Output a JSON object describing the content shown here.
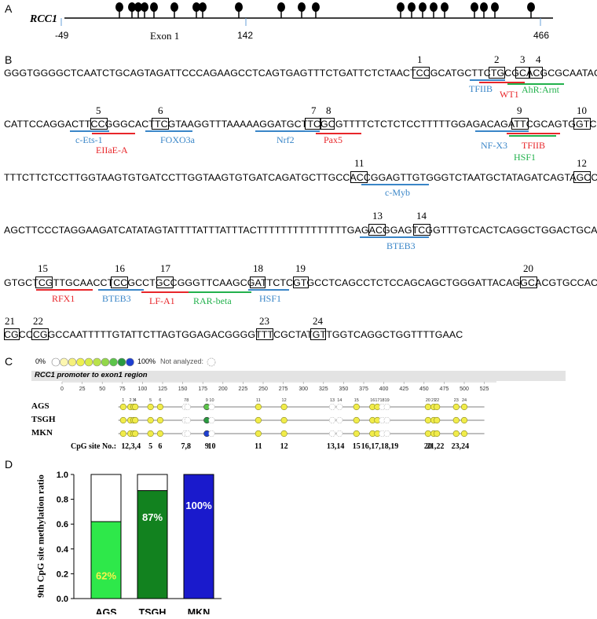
{
  "panelA": {
    "letter": "A",
    "gene": "RCC1",
    "ticks": [
      "-49",
      "142",
      "466"
    ],
    "exon_label": "Exon 1"
  },
  "panelB": {
    "letter": "B",
    "sequence_lines": [
      "GGGTGGGGCTCAATCTGCAGTAGATTCCCAGAAGCCTCAGTGAGTTTCTGATTCTCTAACTCCGCATGCTTCTGCGCACGCGCAATAGA",
      "CATTCCAGGACTTCCGGGCACTTCGTAAGGTTTAAAAAGGATGCTTCGCGTTTTCTCTCTCCTTTTTGGAGACAGATTCGCAGTGGTCG",
      "TTTCTTCTCCTTGGTAAGTGTGATCCTTGGTAAGTGTGATCAGATGCTTGCCACCGGAGTTGTGGGTCTAATGCTATAGATCAGTAGCCG",
      "AGCTTCCCTAGGAAGATCATATAGTATTTTATTTATTTACTTTTTTTTTTTTTTTGAGACGGAGTCGGTTTGTCACTCAGGCTGGACTGCA",
      "GTGCTCGTTGCAACCTCCGCCTGCCGGGTTCAAGCGATTCTCGTGCCTCAGCCTCTCCAGCAGCTGGGATTACAGGCACGTGCCACCA",
      "CGCCCGGCCAATTTTTGTATTCTTAGTGGAGACGGGGTTTCGCTATGTTGGTCAGGCTGGTTTTGAAC"
    ],
    "site_numbers": [
      "1",
      "2",
      "3",
      "4",
      "5",
      "6",
      "7",
      "8",
      "9",
      "10",
      "11",
      "12",
      "13",
      "14",
      "15",
      "16",
      "17",
      "18",
      "19",
      "20",
      "21",
      "22",
      "23",
      "24"
    ],
    "tf_labels": {
      "tfiib_1": "TFIIB",
      "wt1": "WT1",
      "ahr_arnt": "AhR:Arnt",
      "c_ets_1": "c-Ets-1",
      "eiiae_a": "EIIaE-A",
      "foxo3a": "FOXO3a",
      "nrf2": "Nrf2",
      "pax5": "Pax5",
      "nf_x3": "NF-X3",
      "tfiib_2": "TFIIB",
      "hsf1_1": "HSF1",
      "c_myb": "c-Myb",
      "bteb3_1": "BTEB3",
      "rfx1": "RFX1",
      "bteb3_2": "BTEB3",
      "lf_a1": "LF-A1",
      "rar_beta": "RAR-beta",
      "hsf1_2": "HSF1"
    },
    "colors": {
      "blue": "#3a86c8",
      "red": "#e8262a",
      "green": "#22b14c"
    }
  },
  "panelC": {
    "letter": "C",
    "legend_min": "0%",
    "legend_max": "100%",
    "legend_na": "Not analyzed:",
    "legend_colors": [
      "#ffffff",
      "#fdf7b0",
      "#f5f07a",
      "#eef04e",
      "#d8ec4a",
      "#b9e24a",
      "#93d84a",
      "#5cc44a",
      "#2a9a40",
      "#1e3fd0"
    ],
    "header": "RCC1 promoter to exon1 region",
    "axis_ticks": [
      "0",
      "25",
      "50",
      "75",
      "100",
      "125",
      "150",
      "175",
      "200",
      "225",
      "250",
      "275",
      "300",
      "325",
      "350",
      "375",
      "400",
      "425",
      "450",
      "475",
      "500",
      "525"
    ],
    "rows": [
      "AGS",
      "TSGH",
      "MKN"
    ],
    "site_label_title": "CpG site No.:",
    "site_groups": [
      "1",
      "2,3,4",
      "5",
      "6",
      "7,8",
      "9",
      "10",
      "11",
      "12",
      "13,14",
      "15",
      "16,17,18,19",
      "20",
      "21,22",
      "23,24"
    ]
  },
  "chart_data": {
    "type": "bar",
    "categories": [
      "AGS",
      "TSGH",
      "MKN"
    ],
    "values": [
      0.62,
      0.87,
      1.0
    ],
    "bar_labels": [
      "62%",
      "87%",
      "100%"
    ],
    "colors": [
      "#2ee84a",
      "#12821f",
      "#1a1acc"
    ],
    "ylabel": "9th CpG site methylation ratio",
    "ylim": [
      0,
      1.0
    ],
    "yticks": [
      "0.0",
      "0.2",
      "0.4",
      "0.6",
      "0.8",
      "1.0"
    ],
    "letter": "D"
  }
}
